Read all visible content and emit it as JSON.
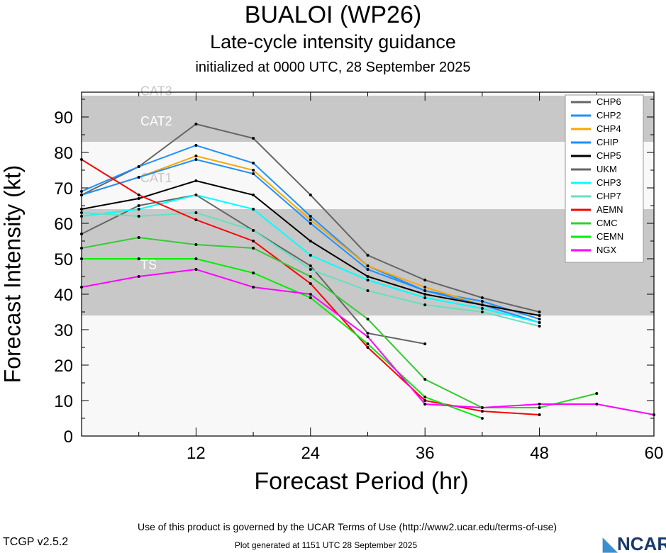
{
  "chart_data": {
    "type": "line",
    "title": "BUALOI (WP26)",
    "subtitle": "Late-cycle intensity guidance",
    "subtitle2": "initialized at 0000 UTC, 28 September 2025",
    "xlabel": "Forecast Period (hr)",
    "ylabel": "Forecast Intensity (kt)",
    "xlim": [
      0,
      60
    ],
    "ylim": [
      0,
      97
    ],
    "xticks": [
      12,
      24,
      36,
      48,
      60
    ],
    "yticks": [
      0,
      10,
      20,
      30,
      40,
      50,
      60,
      70,
      80,
      90
    ],
    "bands": [
      {
        "name": "TS",
        "from": 34,
        "to": 64,
        "color": "#c8c8c8"
      },
      {
        "name": "CAT1",
        "from": 64,
        "to": 83,
        "color": "#f8f8f8"
      },
      {
        "name": "CAT2",
        "from": 83,
        "to": 96,
        "color": "#c8c8c8"
      },
      {
        "name": "CAT3",
        "from": 96,
        "to": 97,
        "color": "#f8f8f8"
      }
    ],
    "band_labels": [
      "CAT3",
      "CAT2",
      "CAT1",
      "TS"
    ],
    "series": [
      {
        "name": "CHP6",
        "color": "#666666",
        "x": [
          0,
          6,
          12,
          18,
          24,
          30,
          36,
          42,
          48
        ],
        "y": [
          68,
          76,
          88,
          84,
          68,
          51,
          44,
          39,
          35
        ]
      },
      {
        "name": "CHP2",
        "color": "#1e90ff",
        "x": [
          0,
          6,
          12,
          18,
          24,
          30,
          36,
          42,
          48
        ],
        "y": [
          69,
          76,
          82,
          77,
          62,
          48,
          41,
          38,
          33
        ]
      },
      {
        "name": "CHP4",
        "color": "#ffa500",
        "x": [
          0,
          6,
          12,
          18,
          24,
          30,
          36,
          42,
          48
        ],
        "y": [
          68,
          73,
          79,
          75,
          61,
          48,
          42,
          37,
          34
        ]
      },
      {
        "name": "CHIP",
        "color": "#1e90ff",
        "x": [
          0,
          6,
          12,
          18,
          24,
          30,
          36,
          42,
          48
        ],
        "y": [
          68,
          73,
          78,
          74,
          60,
          47,
          41,
          37,
          32
        ]
      },
      {
        "name": "CHP5",
        "color": "#000000",
        "x": [
          0,
          6,
          12,
          18,
          24,
          30,
          36,
          42,
          48
        ],
        "y": [
          64,
          67,
          72,
          68,
          55,
          45,
          40,
          37,
          34
        ]
      },
      {
        "name": "UKM",
        "color": "#666666",
        "x": [
          0,
          6,
          12,
          18,
          24,
          30,
          36
        ],
        "y": [
          57,
          65,
          68,
          58,
          48,
          29,
          26
        ]
      },
      {
        "name": "CHP3",
        "color": "#00ffff",
        "x": [
          0,
          6,
          12,
          18,
          24,
          30,
          36,
          42,
          48
        ],
        "y": [
          62,
          64,
          68,
          64,
          51,
          44,
          39,
          36,
          32
        ]
      },
      {
        "name": "CHP7",
        "color": "#66e0c0",
        "x": [
          0,
          6,
          12,
          18,
          24,
          30,
          36,
          42,
          48
        ],
        "y": [
          63,
          62,
          63,
          58,
          47,
          41,
          37,
          35,
          31
        ]
      },
      {
        "name": "AEMN",
        "color": "#ff0000",
        "x": [
          0,
          6,
          12,
          18,
          24,
          30,
          36,
          42,
          48
        ],
        "y": [
          78,
          68,
          61,
          55,
          43,
          25,
          10,
          7,
          6
        ]
      },
      {
        "name": "CMC",
        "color": "#33cc33",
        "x": [
          0,
          6,
          12,
          18,
          24,
          30,
          36,
          42,
          48,
          54
        ],
        "y": [
          53,
          56,
          54,
          53,
          45,
          33,
          16,
          8,
          8,
          12
        ]
      },
      {
        "name": "CEMN",
        "color": "#00ee00",
        "x": [
          0,
          6,
          12,
          18,
          24,
          30,
          36,
          42
        ],
        "y": [
          50,
          50,
          50,
          46,
          39,
          26,
          11,
          5
        ]
      },
      {
        "name": "NGX",
        "color": "#ff00ff",
        "x": [
          0,
          6,
          12,
          18,
          24,
          30,
          36,
          42,
          48,
          54,
          60
        ],
        "y": [
          42,
          45,
          47,
          42,
          40,
          28,
          9,
          8,
          9,
          9,
          6
        ]
      }
    ]
  },
  "footer": {
    "version": "TCGP v2.5.2",
    "terms": "Use of this product is governed by the UCAR Terms of Use (http://www2.ucar.edu/terms-of-use)",
    "generated": "Plot generated at 1151 UTC   28 September 2025",
    "logo": "NCAR"
  }
}
